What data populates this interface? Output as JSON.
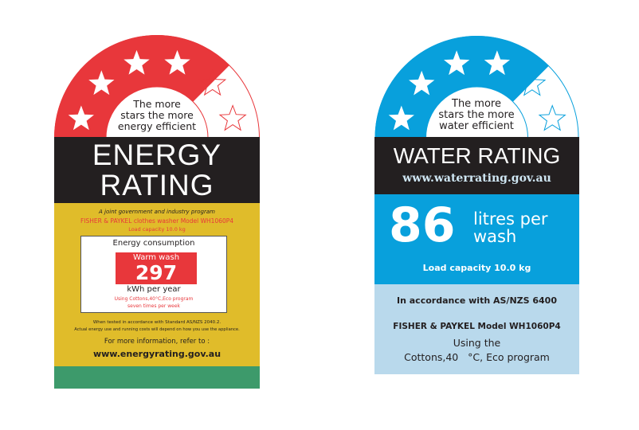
{
  "energy_label": {
    "dome_text": [
      "The more",
      "stars the more",
      "energy efficient"
    ],
    "star_rating": 4.5,
    "stars_total": 6,
    "title_line1": "ENERGY",
    "title_line2": "RATING",
    "joint_program": "A joint government and industry program",
    "brand": "FISHER & PAYKEL",
    "product": "clothes washer Model WH1060P4",
    "load_capacity": "Load capacity 10.0 kg",
    "consumption_heading": "Energy consumption",
    "wash_type": "Warm wash",
    "kwh_value": "297",
    "kwh_unit": "kWh per year",
    "program_line1": "Using Cottons,40°C,Eco program",
    "program_line2": "seven times per week",
    "standard_note": "When tested in accordance with Standard AS/NZS 2040.2.",
    "usage_note": "Actual energy use and running costs will depend on how you use the appliance.",
    "more_info": "For more information, refer to :",
    "website": "www.energyrating.gov.au",
    "colors": {
      "accent": "#e8373b",
      "band": "#231f20",
      "body": "#e0bc2a",
      "footer": "#3d9a6b"
    }
  },
  "water_label": {
    "dome_text": [
      "The more",
      "stars the more",
      "water efficient"
    ],
    "star_rating": 4.5,
    "stars_total": 6,
    "title": "WATER RATING",
    "website": "www.waterrating.gov.au",
    "litres_value": "86",
    "litres_unit_line1": "litres per",
    "litres_unit_line2": "wash",
    "load_capacity": "Load capacity 10.0 kg",
    "standard": "In accordance with AS/NZS 6400",
    "model": "FISHER & PAYKEL Model WH1060P4",
    "program_line1": "Using the",
    "program_line2": "Cottons,40   °C, Eco program",
    "colors": {
      "accent": "#08a0dc",
      "band": "#231f20",
      "body": "#b9d9ec"
    }
  }
}
